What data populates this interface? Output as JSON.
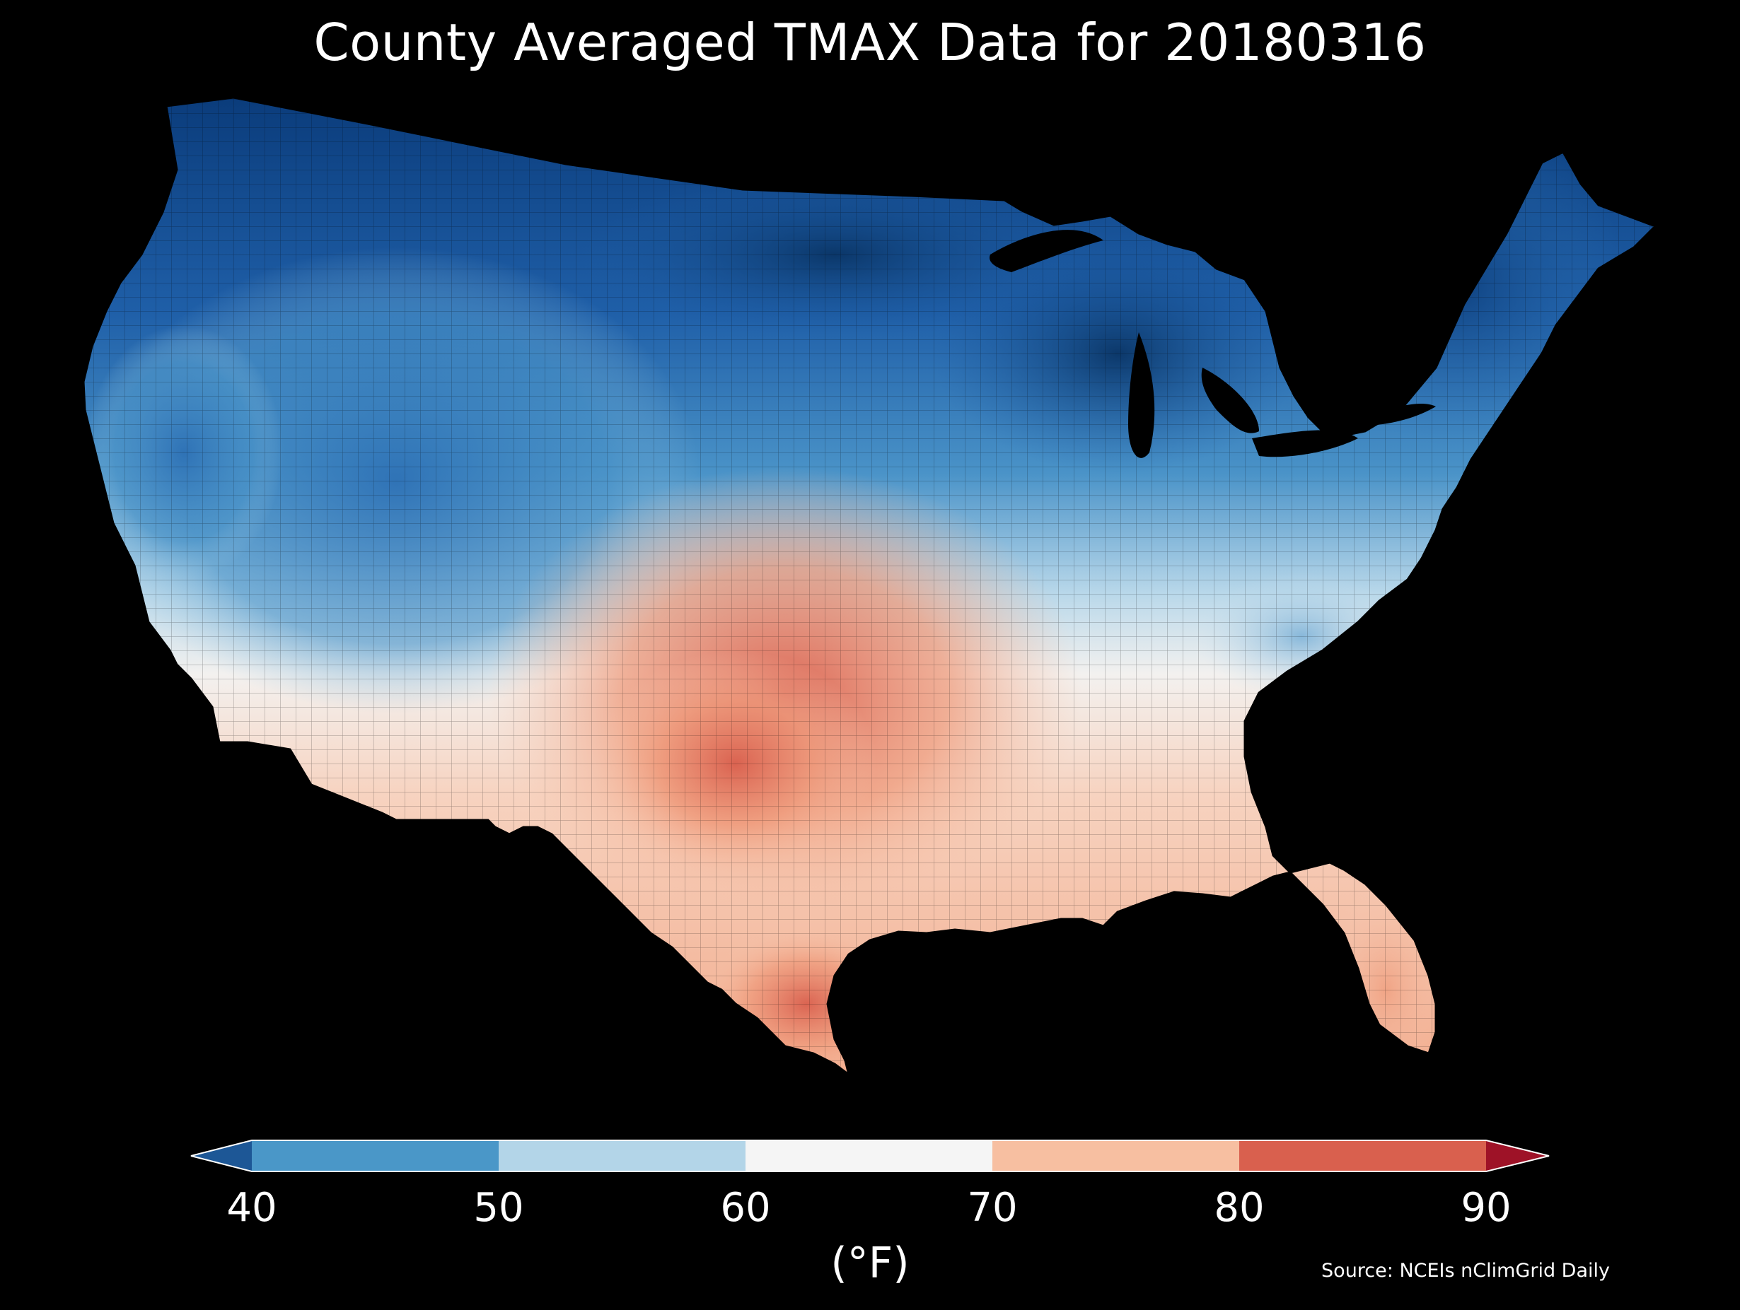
{
  "title": "County Averaged TMAX Data for 20180316",
  "source": "Source: NCEIs nClimGrid Daily",
  "colorbar": {
    "unit_label": "(°F)",
    "ticks": [
      "40",
      "50",
      "60",
      "70",
      "80",
      "90"
    ],
    "bins": [
      {
        "range": "<40",
        "color": "#1d5796"
      },
      {
        "range": "40-50",
        "color": "#4a97c8"
      },
      {
        "range": "50-60",
        "color": "#b3d5e8"
      },
      {
        "range": "60-70",
        "color": "#f5f5f5"
      },
      {
        "range": "70-80",
        "color": "#f7bfa1"
      },
      {
        "range": "80-90",
        "color": "#d9604e"
      },
      {
        "range": ">90",
        "color": "#9e1227"
      }
    ]
  },
  "map": {
    "region": "Contiguous United States",
    "variable": "TMAX",
    "date": "20180316",
    "background": "#000000"
  }
}
